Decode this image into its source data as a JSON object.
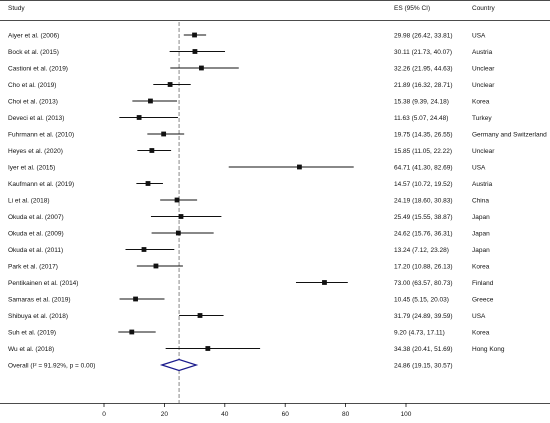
{
  "chart_data": {
    "type": "forest",
    "headers": {
      "study": "Study",
      "es": "ES (95%  CI)",
      "country": "Country"
    },
    "x_axis": {
      "range": [
        -32,
        102
      ],
      "ticks": [
        0,
        20,
        40,
        60,
        80,
        100
      ]
    },
    "reference_line": 24.86,
    "studies": [
      {
        "label": "Aiyer et al. (2006)",
        "es": 29.98,
        "lo": 26.42,
        "hi": 33.81,
        "es_text": "29.98 (26.42, 33.81)",
        "country": "USA"
      },
      {
        "label": "Bock et al. (2015)",
        "es": 30.11,
        "lo": 21.73,
        "hi": 40.07,
        "es_text": "30.11 (21.73, 40.07)",
        "country": "Austria"
      },
      {
        "label": "Castioni et al. (2019)",
        "es": 32.26,
        "lo": 21.95,
        "hi": 44.63,
        "es_text": "32.26 (21.95, 44.63)",
        "country": "Unclear"
      },
      {
        "label": "Cho et al. (2019)",
        "es": 21.89,
        "lo": 16.32,
        "hi": 28.71,
        "es_text": "21.89 (16.32, 28.71)",
        "country": "Unclear"
      },
      {
        "label": "Choi et al. (2013)",
        "es": 15.38,
        "lo": 9.39,
        "hi": 24.18,
        "es_text": "15.38 (9.39, 24.18)",
        "country": "Korea"
      },
      {
        "label": "Deveci et al. (2013)",
        "es": 11.63,
        "lo": 5.07,
        "hi": 24.48,
        "es_text": "11.63 (5.07, 24.48)",
        "country": "Turkey"
      },
      {
        "label": "Fuhrmann et al. (2010)",
        "es": 19.75,
        "lo": 14.35,
        "hi": 26.55,
        "es_text": "19.75 (14.35, 26.55)",
        "country": "Germany and Switzerland"
      },
      {
        "label": "Heyes et al. (2020)",
        "es": 15.85,
        "lo": 11.05,
        "hi": 22.22,
        "es_text": "15.85 (11.05, 22.22)",
        "country": "Unclear"
      },
      {
        "label": "Iyer et al. (2015)",
        "es": 64.71,
        "lo": 41.3,
        "hi": 82.69,
        "es_text": "64.71 (41.30, 82.69)",
        "country": "USA"
      },
      {
        "label": "Kaufmann et al. (2019)",
        "es": 14.57,
        "lo": 10.72,
        "hi": 19.52,
        "es_text": "14.57 (10.72, 19.52)",
        "country": "Austria"
      },
      {
        "label": "Li et al. (2018)",
        "es": 24.19,
        "lo": 18.6,
        "hi": 30.83,
        "es_text": "24.19 (18.60, 30.83)",
        "country": "China"
      },
      {
        "label": "Okuda et al. (2007)",
        "es": 25.49,
        "lo": 15.55,
        "hi": 38.87,
        "es_text": "25.49 (15.55, 38.87)",
        "country": "Japan"
      },
      {
        "label": "Okuda et al. (2009)",
        "es": 24.62,
        "lo": 15.76,
        "hi": 36.31,
        "es_text": "24.62 (15.76, 36.31)",
        "country": "Japan"
      },
      {
        "label": "Okuda et al. (2011)",
        "es": 13.24,
        "lo": 7.12,
        "hi": 23.28,
        "es_text": "13.24 (7.12, 23.28)",
        "country": "Japan"
      },
      {
        "label": "Park et al. (2017)",
        "es": 17.2,
        "lo": 10.88,
        "hi": 26.13,
        "es_text": "17.20 (10.88, 26.13)",
        "country": "Korea"
      },
      {
        "label": "Pentikainen et al. (2014)",
        "es": 73.0,
        "lo": 63.57,
        "hi": 80.73,
        "es_text": "73.00 (63.57, 80.73)",
        "country": "Finland"
      },
      {
        "label": "Samaras et al. (2019)",
        "es": 10.45,
        "lo": 5.15,
        "hi": 20.03,
        "es_text": "10.45 (5.15, 20.03)",
        "country": "Greece"
      },
      {
        "label": "Shibuya et al. (2018)",
        "es": 31.79,
        "lo": 24.89,
        "hi": 39.59,
        "es_text": "31.79 (24.89, 39.59)",
        "country": "USA"
      },
      {
        "label": "Suh et al. (2019)",
        "es": 9.2,
        "lo": 4.73,
        "hi": 17.11,
        "es_text": "9.20 (4.73, 17.11)",
        "country": "Korea"
      },
      {
        "label": "Wu et al. (2018)",
        "es": 34.38,
        "lo": 20.41,
        "hi": 51.69,
        "es_text": "34.38 (20.41, 51.69)",
        "country": "Hong Kong"
      }
    ],
    "overall": {
      "label": "Overall  (I² = 91.92%, p = 0.00)",
      "es": 24.86,
      "lo": 19.15,
      "hi": 30.57,
      "es_text": "24.86 (19.15, 30.57)"
    },
    "colors": {
      "ink": "#111111",
      "diamond": "#1a1a8c",
      "refline": "#888888"
    }
  }
}
